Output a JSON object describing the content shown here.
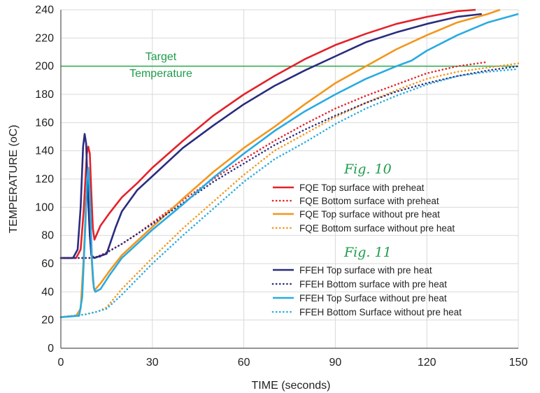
{
  "chart_data": {
    "type": "line",
    "xlabel": "TIME  (seconds)",
    "ylabel": "TEMPERATURE  (oC)",
    "xlim": [
      0,
      150
    ],
    "ylim": [
      0,
      240
    ],
    "x_ticks": [
      "0",
      "30",
      "60",
      "90",
      "120",
      "150"
    ],
    "y_ticks": [
      "0",
      "20",
      "40",
      "60",
      "80",
      "100",
      "120",
      "140",
      "160",
      "180",
      "200",
      "220",
      "240"
    ],
    "grid": true,
    "legend_position": "center-right",
    "annotations": {
      "target_line_value": 200,
      "target_line_color": "#2ca84a",
      "target_label_line1": "Target",
      "target_label_line2": "Temperature",
      "fig10": "Fig. 10",
      "fig11": "Fig. 11"
    },
    "series": [
      {
        "name": "FQE Top surface with preheat",
        "color": "#e3222b",
        "dash": "solid",
        "group": "fig10",
        "points": [
          [
            0,
            64
          ],
          [
            5,
            64
          ],
          [
            6.5,
            70
          ],
          [
            7.5,
            98
          ],
          [
            8.5,
            138
          ],
          [
            9,
            143
          ],
          [
            9.5,
            138
          ],
          [
            10,
            110
          ],
          [
            10.5,
            85
          ],
          [
            11,
            77
          ],
          [
            13,
            87
          ],
          [
            16,
            96
          ],
          [
            20,
            107
          ],
          [
            25,
            117
          ],
          [
            30,
            128
          ],
          [
            40,
            147
          ],
          [
            50,
            165
          ],
          [
            60,
            180
          ],
          [
            70,
            193
          ],
          [
            80,
            205
          ],
          [
            90,
            215
          ],
          [
            100,
            223
          ],
          [
            110,
            230
          ],
          [
            120,
            235
          ],
          [
            130,
            239
          ],
          [
            136,
            240
          ]
        ]
      },
      {
        "name": "FQE Bottom surface with preheat",
        "color": "#e3222b",
        "dash": "dotted",
        "group": "fig10",
        "points": [
          [
            0,
            64
          ],
          [
            10,
            64
          ],
          [
            12,
            65
          ],
          [
            15,
            68
          ],
          [
            20,
            74
          ],
          [
            25,
            81
          ],
          [
            30,
            89
          ],
          [
            40,
            105
          ],
          [
            50,
            120
          ],
          [
            60,
            134
          ],
          [
            70,
            147
          ],
          [
            80,
            159
          ],
          [
            90,
            170
          ],
          [
            100,
            179
          ],
          [
            110,
            187
          ],
          [
            120,
            195
          ],
          [
            130,
            200
          ],
          [
            140,
            203
          ]
        ]
      },
      {
        "name": "FQE Top surface without pre heat",
        "color": "#f3961c",
        "dash": "solid",
        "group": "fig10",
        "points": [
          [
            0,
            22
          ],
          [
            5,
            23
          ],
          [
            6.5,
            28
          ],
          [
            7.5,
            65
          ],
          [
            8.3,
            106
          ],
          [
            8.7,
            116
          ],
          [
            9.2,
            108
          ],
          [
            9.8,
            75
          ],
          [
            10.5,
            48
          ],
          [
            11,
            41
          ],
          [
            13,
            46
          ],
          [
            16,
            55
          ],
          [
            20,
            66
          ],
          [
            25,
            76
          ],
          [
            30,
            86
          ],
          [
            40,
            106
          ],
          [
            50,
            125
          ],
          [
            60,
            142
          ],
          [
            70,
            157
          ],
          [
            80,
            173
          ],
          [
            90,
            188
          ],
          [
            100,
            200
          ],
          [
            110,
            212
          ],
          [
            120,
            222
          ],
          [
            130,
            231
          ],
          [
            140,
            237
          ],
          [
            144,
            240
          ]
        ]
      },
      {
        "name": "FQE Bottom  surface without pre heat",
        "color": "#f3961c",
        "dash": "dotted",
        "group": "fig10",
        "points": [
          [
            0,
            22
          ],
          [
            8,
            24
          ],
          [
            12,
            26
          ],
          [
            15,
            29
          ],
          [
            20,
            42
          ],
          [
            25,
            53
          ],
          [
            30,
            64
          ],
          [
            40,
            85
          ],
          [
            50,
            104
          ],
          [
            60,
            123
          ],
          [
            70,
            140
          ],
          [
            80,
            152
          ],
          [
            90,
            164
          ],
          [
            100,
            174
          ],
          [
            110,
            183
          ],
          [
            120,
            191
          ],
          [
            130,
            196
          ],
          [
            140,
            199
          ],
          [
            150,
            202
          ]
        ]
      },
      {
        "name": "FFEH Top surface with pre heat",
        "color": "#2a2c7e",
        "dash": "solid",
        "group": "fig11",
        "points": [
          [
            0,
            64
          ],
          [
            4,
            64
          ],
          [
            5.5,
            70
          ],
          [
            6.5,
            100
          ],
          [
            7.3,
            143
          ],
          [
            7.8,
            152
          ],
          [
            8.3,
            145
          ],
          [
            8.8,
            112
          ],
          [
            9.5,
            80
          ],
          [
            10,
            66
          ],
          [
            11,
            64
          ],
          [
            15,
            67
          ],
          [
            18,
            86
          ],
          [
            20,
            97
          ],
          [
            25,
            112
          ],
          [
            30,
            122
          ],
          [
            40,
            142
          ],
          [
            50,
            158
          ],
          [
            60,
            173
          ],
          [
            70,
            186
          ],
          [
            80,
            197
          ],
          [
            90,
            207
          ],
          [
            100,
            217
          ],
          [
            110,
            224
          ],
          [
            120,
            230
          ],
          [
            130,
            235
          ],
          [
            138,
            237
          ]
        ]
      },
      {
        "name": "FFEH Bottom surface with pre heat",
        "color": "#2a2c7e",
        "dash": "dotted",
        "group": "fig11",
        "points": [
          [
            0,
            64
          ],
          [
            10,
            64
          ],
          [
            13,
            65
          ],
          [
            16,
            69
          ],
          [
            20,
            74
          ],
          [
            25,
            81
          ],
          [
            30,
            88
          ],
          [
            40,
            103
          ],
          [
            50,
            118
          ],
          [
            60,
            131
          ],
          [
            70,
            144
          ],
          [
            80,
            155
          ],
          [
            90,
            165
          ],
          [
            100,
            174
          ],
          [
            110,
            182
          ],
          [
            120,
            188
          ],
          [
            130,
            193
          ],
          [
            140,
            197
          ],
          [
            150,
            200
          ]
        ]
      },
      {
        "name": "FFEH Top Surface without pre heat",
        "color": "#29abe2",
        "dash": "solid",
        "group": "fig11",
        "points": [
          [
            0,
            22
          ],
          [
            6,
            23
          ],
          [
            7,
            36
          ],
          [
            8,
            85
          ],
          [
            8.6,
            120
          ],
          [
            9,
            128
          ],
          [
            9.5,
            110
          ],
          [
            10.2,
            62
          ],
          [
            10.8,
            43
          ],
          [
            11.3,
            40
          ],
          [
            13,
            42
          ],
          [
            16,
            52
          ],
          [
            20,
            64
          ],
          [
            25,
            74
          ],
          [
            30,
            84
          ],
          [
            40,
            102
          ],
          [
            50,
            121
          ],
          [
            60,
            138
          ],
          [
            70,
            154
          ],
          [
            80,
            168
          ],
          [
            90,
            180
          ],
          [
            100,
            191
          ],
          [
            110,
            200
          ],
          [
            115,
            204
          ],
          [
            120,
            211
          ],
          [
            130,
            222
          ],
          [
            140,
            231
          ],
          [
            150,
            237
          ]
        ]
      },
      {
        "name": "FFEH Bottom Surface without pre heat",
        "color": "#29abe2",
        "dash": "dotted",
        "group": "fig11",
        "points": [
          [
            0,
            22
          ],
          [
            8,
            24
          ],
          [
            12,
            26
          ],
          [
            15,
            28
          ],
          [
            20,
            38
          ],
          [
            25,
            49
          ],
          [
            30,
            60
          ],
          [
            40,
            80
          ],
          [
            50,
            99
          ],
          [
            60,
            118
          ],
          [
            70,
            134
          ],
          [
            80,
            146
          ],
          [
            90,
            159
          ],
          [
            100,
            170
          ],
          [
            110,
            179
          ],
          [
            120,
            187
          ],
          [
            130,
            193
          ],
          [
            140,
            196
          ],
          [
            150,
            198
          ]
        ]
      }
    ]
  }
}
